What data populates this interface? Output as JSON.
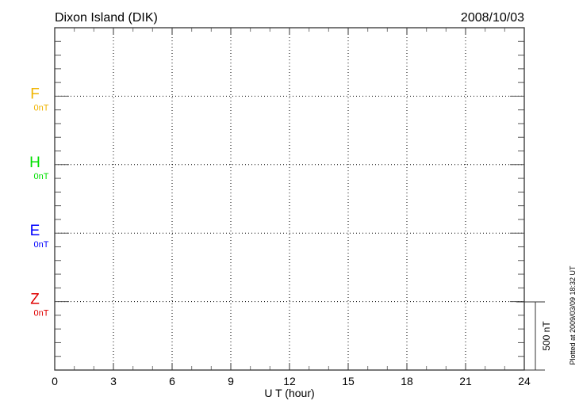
{
  "chart_data": {
    "type": "line",
    "title": "Dixon Island (DIK)",
    "date": "2008/10/03",
    "xlabel": "U T (hour)",
    "xlim": [
      0,
      24
    ],
    "x_ticks": [
      "0",
      "3",
      "6",
      "9",
      "12",
      "15",
      "18",
      "21",
      "24"
    ],
    "grid": true,
    "series": [
      {
        "name": "F",
        "baseline_label": "0nT",
        "color": "#f0b400",
        "values": []
      },
      {
        "name": "H",
        "baseline_label": "0nT",
        "color": "#00e000",
        "values": []
      },
      {
        "name": "E",
        "baseline_label": "0nT",
        "color": "#0000ff",
        "values": []
      },
      {
        "name": "Z",
        "baseline_label": "0nT",
        "color": "#e00000",
        "values": []
      }
    ],
    "scale_bar_label": "500 nT",
    "footer": "Plotted at 2009/03/09 18:32 UT"
  }
}
